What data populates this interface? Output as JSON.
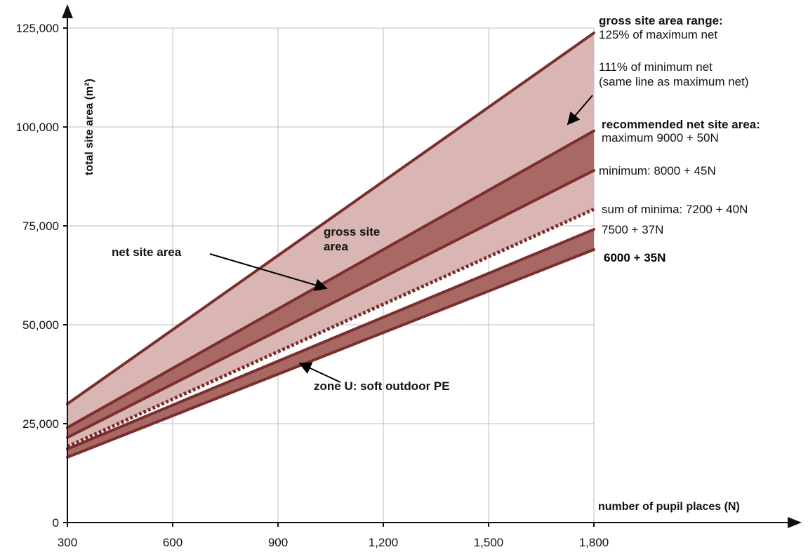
{
  "chart_data": {
    "type": "line",
    "title": "",
    "xlabel": "number of pupil places (N)",
    "ylabel": "total site area (m²)",
    "xlim": [
      300,
      1800
    ],
    "ylim": [
      0,
      125000
    ],
    "x_ticks": [
      300,
      600,
      900,
      1200,
      1500,
      1800
    ],
    "x_tick_labels": [
      "300",
      "600",
      "900",
      "1,200",
      "1,500",
      "1,800"
    ],
    "y_ticks": [
      0,
      25000,
      50000,
      75000,
      100000,
      125000
    ],
    "y_tick_labels": [
      "0",
      "25,000",
      "50,000",
      "75,000",
      "100,000",
      "125,000"
    ],
    "grid": true,
    "x": [
      300,
      1800
    ],
    "series": [
      {
        "name": "125% of maximum net",
        "values": [
          30000,
          123750
        ]
      },
      {
        "name": "maximum 9000 + 50N",
        "values": [
          24000,
          99000
        ]
      },
      {
        "name": "minimum: 8000 + 45N",
        "values": [
          21500,
          89000
        ]
      },
      {
        "name": "sum of minima: 7200 + 40N",
        "values": [
          19200,
          79200
        ],
        "style": "dotted"
      },
      {
        "name": "7500 + 37N",
        "values": [
          18600,
          74100
        ]
      },
      {
        "name": "6000 + 35N",
        "values": [
          16500,
          69000
        ]
      }
    ],
    "bands": [
      {
        "name": "gross site area",
        "between": [
          "sum of minima: 7200 + 40N",
          "125% of maximum net"
        ],
        "color": "#d9b6b4"
      },
      {
        "name": "net site area",
        "between": [
          "minimum: 8000 + 45N",
          "maximum 9000 + 50N"
        ],
        "color": "#a86864"
      },
      {
        "name": "zone U: soft outdoor PE",
        "between": [
          "6000 + 35N",
          "7500 + 37N"
        ],
        "color": "#a86864"
      }
    ],
    "annotations": {
      "gross_range_title": "gross site area range:",
      "gross_range_max": "125% of maximum net",
      "gross_range_min_line1": "111% of minimum net",
      "gross_range_min_line2": "(same line as maximum net)",
      "net_title": "recommended net site area:",
      "net_max": "maximum 9000 + 50N",
      "net_min": "minimum: 8000 + 45N",
      "sum_minima": "sum of minima: 7200 + 40N",
      "zone_upper": "7500 + 37N",
      "zone_lower": "6000 + 35N",
      "gross_label_line1": "gross site",
      "gross_label_line2": "area",
      "net_label": "net site area",
      "zone_label": "zone U: soft outdoor PE"
    },
    "colors": {
      "line": "#7a2e2e",
      "band_light": "#d9b6b4",
      "band_dark": "#a86864"
    }
  }
}
